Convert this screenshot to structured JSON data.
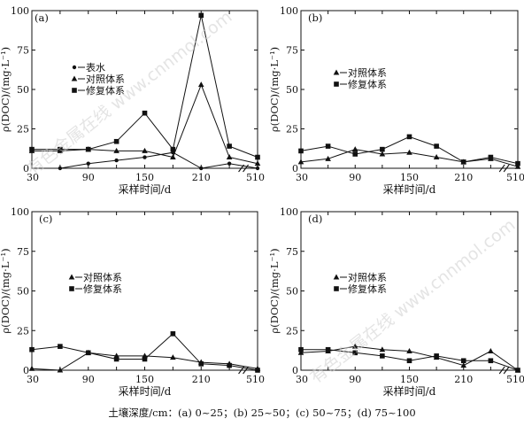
{
  "caption": "土壤深度/cm：(a) 0~25；(b) 25~50；(c) 50~75；(d) 75~100",
  "watermark": "有色金属在线 www.cnnmol.com",
  "chart_data": [
    {
      "type": "line",
      "panel_label": "(a)",
      "ylabel": "ρ(DOC)/(mg·L⁻¹)",
      "xlabel": "采样时间/d",
      "x_tick_labels": [
        "30",
        "90",
        "150",
        "210",
        "510"
      ],
      "x_axis_break": true,
      "ylim": [
        0,
        100
      ],
      "y_ticks": [
        0,
        25,
        50,
        75,
        100
      ],
      "x": [
        30,
        60,
        90,
        120,
        150,
        180,
        210,
        240,
        270
      ],
      "legend_position": "upper-left",
      "series": [
        {
          "name": "表水",
          "marker": "circle",
          "values": [
            null,
            0,
            3,
            5,
            7,
            10,
            0,
            3,
            0
          ]
        },
        {
          "name": "对照体系",
          "marker": "triangle",
          "values": [
            11,
            11,
            12,
            11,
            11,
            7,
            53,
            7,
            3
          ]
        },
        {
          "name": "修复体系",
          "marker": "square",
          "values": [
            12,
            12,
            12,
            17,
            35,
            12,
            97,
            14,
            7
          ]
        }
      ]
    },
    {
      "type": "line",
      "panel_label": "(b)",
      "ylabel": "ρ(DOC)/(mg·L⁻¹)",
      "xlabel": "采样时间/d",
      "x_tick_labels": [
        "30",
        "90",
        "150",
        "210",
        "510"
      ],
      "x_axis_break": true,
      "ylim": [
        0,
        100
      ],
      "y_ticks": [
        0,
        25,
        50,
        75,
        100
      ],
      "x": [
        30,
        60,
        90,
        120,
        150,
        180,
        210,
        240,
        270
      ],
      "legend_position": "upper-center",
      "series": [
        {
          "name": "对照体系",
          "marker": "triangle",
          "values": [
            4,
            6,
            12,
            9,
            10,
            7,
            4,
            6,
            1
          ]
        },
        {
          "name": "修复体系",
          "marker": "square",
          "values": [
            11,
            14,
            9,
            12,
            20,
            14,
            4,
            7,
            3
          ]
        }
      ]
    },
    {
      "type": "line",
      "panel_label": "(c)",
      "ylabel": "ρ(DOC)/(mg·L⁻¹)",
      "xlabel": "采样时间/d",
      "x_tick_labels": [
        "30",
        "90",
        "150",
        "210",
        "510"
      ],
      "x_axis_break": true,
      "ylim": [
        0,
        100
      ],
      "y_ticks": [
        0,
        25,
        50,
        75,
        100
      ],
      "x": [
        30,
        60,
        90,
        120,
        150,
        180,
        210,
        240,
        270
      ],
      "legend_position": "center-left",
      "series": [
        {
          "name": "对照体系",
          "marker": "triangle",
          "values": [
            1,
            0,
            11,
            9,
            9,
            8,
            5,
            4,
            1
          ]
        },
        {
          "name": "修复体系",
          "marker": "square",
          "values": [
            13,
            15,
            11,
            7,
            7,
            23,
            4,
            3,
            0
          ]
        }
      ]
    },
    {
      "type": "line",
      "panel_label": "(d)",
      "ylabel": "ρ(DOC)/(mg·L⁻¹)",
      "xlabel": "采样时间/d",
      "x_tick_labels": [
        "30",
        "90",
        "150",
        "210",
        "510"
      ],
      "x_axis_break": true,
      "ylim": [
        0,
        100
      ],
      "y_ticks": [
        0,
        25,
        50,
        75,
        100
      ],
      "x": [
        30,
        60,
        90,
        120,
        150,
        180,
        210,
        240,
        270
      ],
      "legend_position": "center",
      "series": [
        {
          "name": "对照体系",
          "marker": "triangle",
          "values": [
            11,
            12,
            15,
            13,
            12,
            8,
            3,
            12,
            0
          ]
        },
        {
          "name": "修复体系",
          "marker": "square",
          "values": [
            13,
            13,
            11,
            9,
            6,
            9,
            6,
            6,
            0
          ]
        }
      ]
    }
  ]
}
